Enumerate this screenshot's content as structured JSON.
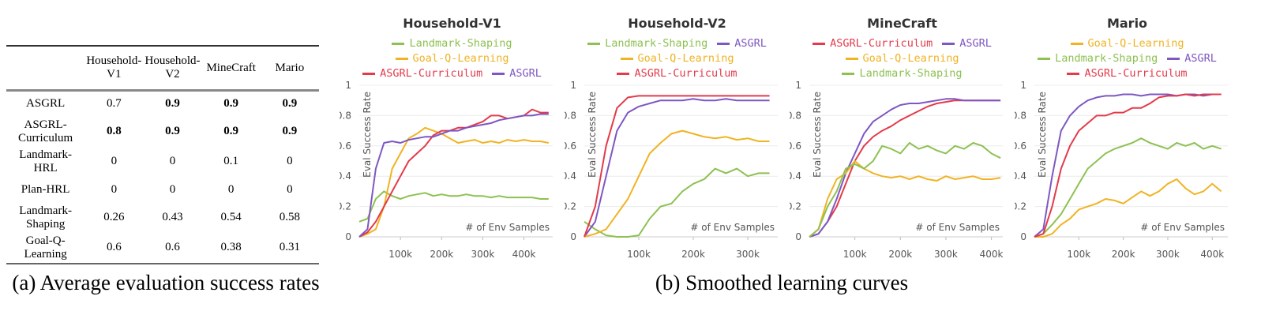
{
  "table": {
    "columns": [
      "Household-V1",
      "Household-V2",
      "MineCraft",
      "Mario"
    ],
    "rows": [
      {
        "label": "ASGRL",
        "values": [
          0.7,
          0.9,
          0.9,
          0.9
        ],
        "bold": [
          false,
          true,
          true,
          true
        ]
      },
      {
        "label": "ASGRL-Curriculum",
        "values": [
          0.8,
          0.9,
          0.9,
          0.9
        ],
        "bold": [
          true,
          true,
          true,
          true
        ]
      },
      {
        "label": "Landmark-HRL",
        "values": [
          0,
          0,
          0.1,
          0
        ],
        "bold": [
          false,
          false,
          false,
          false
        ]
      },
      {
        "label": "Plan-HRL",
        "values": [
          0,
          0,
          0,
          0
        ],
        "bold": [
          false,
          false,
          false,
          false
        ]
      },
      {
        "label": "Landmark-Shaping",
        "values": [
          0.26,
          0.43,
          0.54,
          0.58
        ],
        "bold": [
          false,
          false,
          false,
          false
        ]
      },
      {
        "label": "Goal-Q-Learning",
        "values": [
          0.6,
          0.6,
          0.38,
          0.31
        ],
        "bold": [
          false,
          false,
          false,
          false
        ]
      }
    ]
  },
  "captions": [
    "(a) Average evaluation success rates",
    "(b) Smoothed learning curves"
  ],
  "chart_data": [
    {
      "type": "line",
      "title": "Household-V1",
      "x_label": "# of Env Samples",
      "y_label": "Eval Success Rate",
      "x": [
        0,
        20000,
        40000,
        60000,
        80000,
        100000,
        120000,
        140000,
        160000,
        180000,
        200000,
        220000,
        240000,
        260000,
        280000,
        300000,
        320000,
        340000,
        360000,
        380000,
        400000,
        420000,
        440000,
        460000
      ],
      "xlim": [
        0,
        470000
      ],
      "ylim": [
        0,
        1
      ],
      "grid": true,
      "xticks": [
        {
          "value": 100000,
          "label": "100k"
        },
        {
          "value": 200000,
          "label": "200k"
        },
        {
          "value": 300000,
          "label": "300k"
        },
        {
          "value": 400000,
          "label": "400k"
        }
      ],
      "yticks": [
        0,
        0.2,
        0.4,
        0.6,
        0.8,
        1
      ],
      "series": [
        {
          "name": "Landmark-Shaping",
          "color": "#8dc152",
          "values": [
            0.1,
            0.12,
            0.25,
            0.3,
            0.27,
            0.25,
            0.27,
            0.28,
            0.29,
            0.27,
            0.28,
            0.27,
            0.27,
            0.28,
            0.27,
            0.27,
            0.26,
            0.27,
            0.26,
            0.26,
            0.26,
            0.26,
            0.25,
            0.25
          ]
        },
        {
          "name": "Goal-Q-Learning",
          "color": "#f0b323",
          "values": [
            0,
            0.02,
            0.05,
            0.2,
            0.45,
            0.55,
            0.65,
            0.68,
            0.72,
            0.7,
            0.68,
            0.65,
            0.62,
            0.63,
            0.64,
            0.62,
            0.63,
            0.62,
            0.64,
            0.63,
            0.64,
            0.63,
            0.63,
            0.62
          ]
        },
        {
          "name": "ASGRL-Curriculum",
          "color": "#e23b4b",
          "values": [
            0,
            0.03,
            0.1,
            0.2,
            0.3,
            0.4,
            0.5,
            0.55,
            0.6,
            0.67,
            0.7,
            0.7,
            0.72,
            0.72,
            0.74,
            0.76,
            0.8,
            0.8,
            0.78,
            0.79,
            0.8,
            0.84,
            0.82,
            0.82
          ]
        },
        {
          "name": "ASGRL",
          "color": "#7e57c2",
          "values": [
            0,
            0.05,
            0.45,
            0.62,
            0.63,
            0.62,
            0.64,
            0.65,
            0.66,
            0.66,
            0.68,
            0.7,
            0.7,
            0.72,
            0.73,
            0.74,
            0.75,
            0.77,
            0.78,
            0.79,
            0.8,
            0.8,
            0.81,
            0.81
          ]
        }
      ]
    },
    {
      "type": "line",
      "title": "Household-V2",
      "x_label": "# of Env Samples",
      "y_label": "Eval Success Rate",
      "x": [
        0,
        20000,
        40000,
        60000,
        80000,
        100000,
        120000,
        140000,
        160000,
        180000,
        200000,
        220000,
        240000,
        260000,
        280000,
        300000,
        320000,
        340000
      ],
      "xlim": [
        0,
        355000
      ],
      "ylim": [
        0,
        1
      ],
      "grid": true,
      "xticks": [
        {
          "value": 100000,
          "label": "100k"
        },
        {
          "value": 200000,
          "label": "200k"
        },
        {
          "value": 300000,
          "label": "300k"
        }
      ],
      "yticks": [
        0,
        0.2,
        0.4,
        0.6,
        0.8,
        1
      ],
      "series": [
        {
          "name": "Landmark-Shaping",
          "color": "#8dc152",
          "values": [
            0.1,
            0.05,
            0.01,
            0,
            0,
            0.01,
            0.12,
            0.2,
            0.22,
            0.3,
            0.35,
            0.38,
            0.45,
            0.42,
            0.45,
            0.4,
            0.42,
            0.42
          ]
        },
        {
          "name": "ASGRL",
          "color": "#7e57c2",
          "values": [
            0,
            0.1,
            0.4,
            0.7,
            0.82,
            0.86,
            0.88,
            0.9,
            0.9,
            0.9,
            0.91,
            0.9,
            0.9,
            0.91,
            0.9,
            0.9,
            0.9,
            0.9
          ]
        },
        {
          "name": "Goal-Q-Learning",
          "color": "#f0b323",
          "values": [
            0,
            0.02,
            0.05,
            0.15,
            0.25,
            0.4,
            0.55,
            0.62,
            0.68,
            0.7,
            0.68,
            0.66,
            0.65,
            0.66,
            0.64,
            0.65,
            0.63,
            0.63
          ]
        },
        {
          "name": "ASGRL-Curriculum",
          "color": "#e23b4b",
          "values": [
            0,
            0.2,
            0.6,
            0.85,
            0.92,
            0.93,
            0.93,
            0.93,
            0.93,
            0.93,
            0.93,
            0.93,
            0.93,
            0.93,
            0.93,
            0.93,
            0.93,
            0.93
          ]
        }
      ]
    },
    {
      "type": "line",
      "title": "MineCraft",
      "x_label": "# of Env Samples",
      "y_label": "Eval Success Rate",
      "x": [
        0,
        20000,
        40000,
        60000,
        80000,
        100000,
        120000,
        140000,
        160000,
        180000,
        200000,
        220000,
        240000,
        260000,
        280000,
        300000,
        320000,
        340000,
        360000,
        380000,
        400000,
        420000
      ],
      "xlim": [
        0,
        425000
      ],
      "ylim": [
        0,
        1
      ],
      "grid": true,
      "xticks": [
        {
          "value": 100000,
          "label": "100k"
        },
        {
          "value": 200000,
          "label": "200k"
        },
        {
          "value": 300000,
          "label": "300k"
        },
        {
          "value": 400000,
          "label": "400k"
        }
      ],
      "yticks": [
        0,
        0.2,
        0.4,
        0.6,
        0.8,
        1
      ],
      "series": [
        {
          "name": "ASGRL-Curriculum",
          "color": "#e23b4b",
          "values": [
            0,
            0.02,
            0.1,
            0.2,
            0.35,
            0.5,
            0.6,
            0.66,
            0.7,
            0.73,
            0.77,
            0.8,
            0.83,
            0.86,
            0.88,
            0.89,
            0.9,
            0.9,
            0.9,
            0.9,
            0.9,
            0.9
          ]
        },
        {
          "name": "ASGRL",
          "color": "#7e57c2",
          "values": [
            0,
            0.02,
            0.1,
            0.25,
            0.42,
            0.55,
            0.68,
            0.76,
            0.8,
            0.84,
            0.87,
            0.88,
            0.88,
            0.89,
            0.9,
            0.91,
            0.91,
            0.9,
            0.9,
            0.9,
            0.9,
            0.9
          ]
        },
        {
          "name": "Goal-Q-Learning",
          "color": "#f0b323",
          "values": [
            0,
            0.05,
            0.25,
            0.38,
            0.42,
            0.5,
            0.45,
            0.42,
            0.4,
            0.39,
            0.4,
            0.38,
            0.4,
            0.38,
            0.37,
            0.4,
            0.38,
            0.39,
            0.4,
            0.38,
            0.38,
            0.39
          ]
        },
        {
          "name": "Landmark-Shaping",
          "color": "#8dc152",
          "values": [
            0,
            0.05,
            0.2,
            0.3,
            0.45,
            0.48,
            0.45,
            0.5,
            0.6,
            0.58,
            0.55,
            0.62,
            0.58,
            0.6,
            0.57,
            0.55,
            0.6,
            0.58,
            0.62,
            0.6,
            0.55,
            0.52
          ]
        }
      ]
    },
    {
      "type": "line",
      "title": "Mario",
      "x_label": "# of Env Samples",
      "y_label": "Eval Success Rate",
      "x": [
        0,
        20000,
        40000,
        60000,
        80000,
        100000,
        120000,
        140000,
        160000,
        180000,
        200000,
        220000,
        240000,
        260000,
        280000,
        300000,
        320000,
        340000,
        360000,
        380000,
        400000,
        420000
      ],
      "xlim": [
        0,
        435000
      ],
      "ylim": [
        0,
        1
      ],
      "grid": true,
      "xticks": [
        {
          "value": 100000,
          "label": "100k"
        },
        {
          "value": 200000,
          "label": "200k"
        },
        {
          "value": 300000,
          "label": "300k"
        },
        {
          "value": 400000,
          "label": "400k"
        }
      ],
      "yticks": [
        0,
        0.2,
        0.4,
        0.6,
        0.8,
        1
      ],
      "series": [
        {
          "name": "Goal-Q-Learning",
          "color": "#f0b323",
          "values": [
            0,
            0,
            0.02,
            0.08,
            0.12,
            0.18,
            0.2,
            0.22,
            0.25,
            0.24,
            0.22,
            0.26,
            0.3,
            0.27,
            0.3,
            0.35,
            0.38,
            0.32,
            0.28,
            0.3,
            0.35,
            0.3
          ]
        },
        {
          "name": "Landmark-Shaping",
          "color": "#8dc152",
          "values": [
            0,
            0.02,
            0.08,
            0.15,
            0.25,
            0.35,
            0.45,
            0.5,
            0.55,
            0.58,
            0.6,
            0.62,
            0.65,
            0.62,
            0.6,
            0.58,
            0.62,
            0.6,
            0.62,
            0.58,
            0.6,
            0.58
          ]
        },
        {
          "name": "ASGRL",
          "color": "#7e57c2",
          "values": [
            0,
            0.05,
            0.4,
            0.7,
            0.8,
            0.86,
            0.9,
            0.92,
            0.93,
            0.93,
            0.94,
            0.94,
            0.93,
            0.94,
            0.94,
            0.94,
            0.93,
            0.94,
            0.94,
            0.93,
            0.94,
            0.94
          ]
        },
        {
          "name": "ASGRL-Curriculum",
          "color": "#e23b4b",
          "values": [
            0,
            0.02,
            0.2,
            0.45,
            0.6,
            0.7,
            0.75,
            0.8,
            0.8,
            0.82,
            0.82,
            0.85,
            0.85,
            0.88,
            0.92,
            0.93,
            0.93,
            0.94,
            0.93,
            0.94,
            0.94,
            0.94
          ]
        }
      ]
    }
  ]
}
